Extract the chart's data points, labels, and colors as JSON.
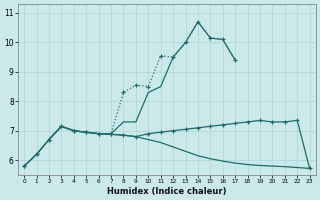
{
  "xlabel": "Humidex (Indice chaleur)",
  "background_color": "#cce9ea",
  "grid_color": "#b0d8da",
  "line_color": "#1e6b6b",
  "xlim": [
    -0.5,
    23.5
  ],
  "ylim": [
    5.5,
    11.3
  ],
  "yticks": [
    6,
    7,
    8,
    9,
    10,
    11
  ],
  "xticks": [
    0,
    1,
    2,
    3,
    4,
    5,
    6,
    7,
    8,
    9,
    10,
    11,
    12,
    13,
    14,
    15,
    16,
    17,
    18,
    19,
    20,
    21,
    22,
    23
  ],
  "curve_dotted_x": [
    0,
    1,
    2,
    3,
    4,
    5,
    6,
    7,
    8,
    9,
    10,
    11,
    12,
    13,
    14,
    15,
    16,
    17
  ],
  "curve_dotted_y": [
    5.8,
    6.2,
    6.7,
    7.15,
    7.0,
    6.95,
    6.9,
    6.9,
    8.3,
    8.55,
    8.5,
    9.55,
    9.5,
    10.0,
    10.7,
    10.15,
    10.1,
    9.4
  ],
  "curve_solid_steep_x": [
    2,
    3,
    4,
    5,
    6,
    7,
    8,
    9,
    10,
    11,
    12,
    13,
    14,
    15,
    16,
    17
  ],
  "curve_solid_steep_y": [
    6.7,
    7.15,
    7.0,
    6.95,
    6.9,
    6.9,
    7.3,
    7.3,
    8.3,
    8.5,
    9.5,
    10.0,
    10.7,
    10.15,
    10.1,
    9.4
  ],
  "curve_flat_x": [
    0,
    1,
    2,
    3,
    4,
    5,
    6,
    7,
    8,
    9,
    10,
    11,
    12,
    13,
    14,
    15,
    16,
    17,
    18,
    19,
    20,
    21,
    22,
    23
  ],
  "curve_flat_y": [
    5.8,
    6.2,
    6.7,
    7.15,
    7.0,
    6.95,
    6.9,
    6.88,
    6.85,
    6.8,
    6.9,
    6.95,
    7.0,
    7.05,
    7.1,
    7.15,
    7.2,
    7.25,
    7.3,
    7.35,
    7.3,
    7.3,
    7.35,
    5.72
  ],
  "curve_lower_x": [
    0,
    1,
    2,
    3,
    4,
    5,
    6,
    7,
    8,
    9,
    10,
    11,
    12,
    13,
    14,
    15,
    16,
    17,
    18,
    19,
    20,
    21,
    22,
    23
  ],
  "curve_lower_y": [
    5.8,
    6.2,
    6.7,
    7.15,
    7.0,
    6.95,
    6.9,
    6.88,
    6.85,
    6.8,
    6.7,
    6.6,
    6.45,
    6.3,
    6.15,
    6.05,
    5.97,
    5.9,
    5.85,
    5.82,
    5.8,
    5.78,
    5.75,
    5.72
  ]
}
